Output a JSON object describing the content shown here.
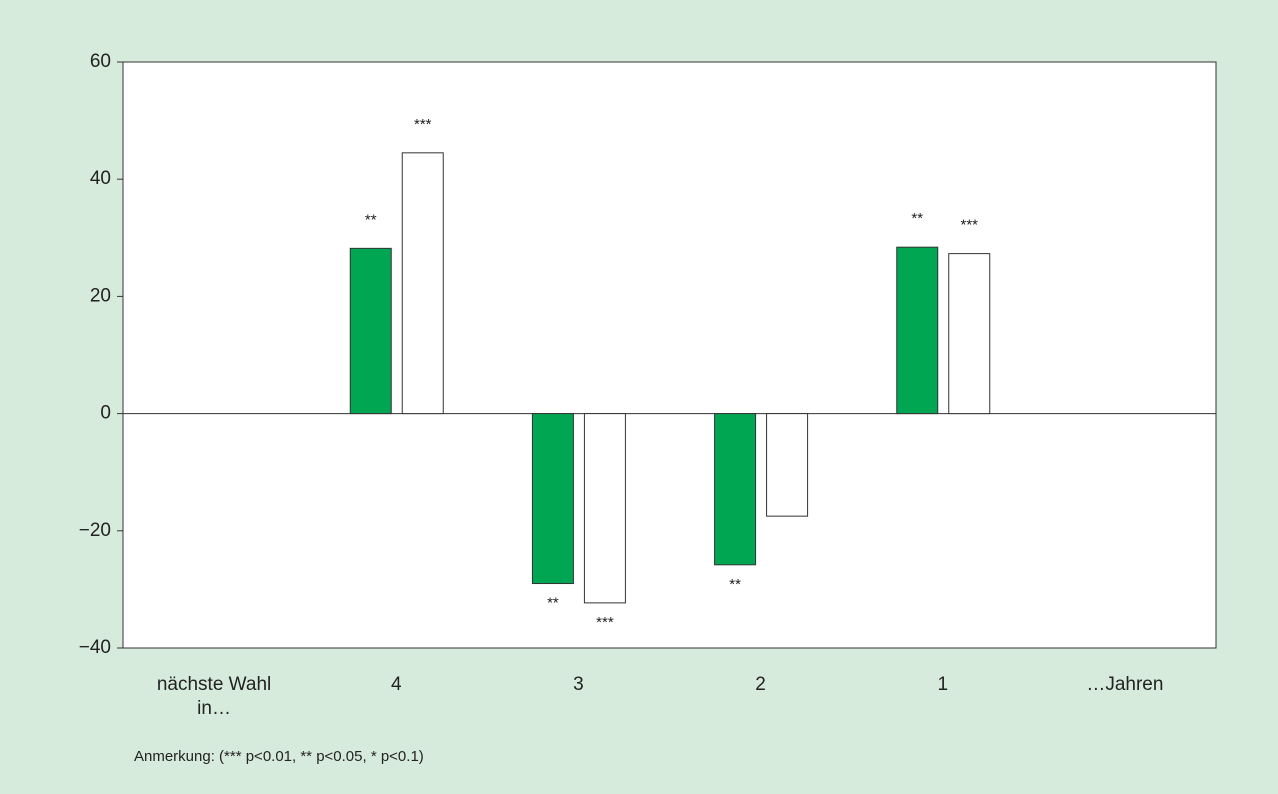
{
  "chart_data": {
    "type": "bar",
    "categories": [
      "nächste Wahl in…",
      "4",
      "3",
      "2",
      "1",
      "…Jahren"
    ],
    "series": [
      {
        "color": "#00a651",
        "values": [
          null,
          28.2,
          -29.0,
          -25.8,
          28.4,
          null
        ],
        "significance": [
          null,
          "**",
          "**",
          "**",
          "**",
          null
        ]
      },
      {
        "color": "#ffffff",
        "values": [
          null,
          44.5,
          -32.3,
          -17.5,
          27.3,
          null
        ],
        "significance": [
          null,
          "***",
          "***",
          null,
          "***",
          null
        ]
      }
    ],
    "ylim": [
      -40,
      60
    ],
    "yticks": [
      {
        "value": -40,
        "label": "−40"
      },
      {
        "value": -20,
        "label": "−20"
      },
      0,
      20,
      40,
      60
    ],
    "grid": false,
    "note": "Anmerkung: (*** p<0.01, ** p<0.05, * p<0.1)"
  }
}
